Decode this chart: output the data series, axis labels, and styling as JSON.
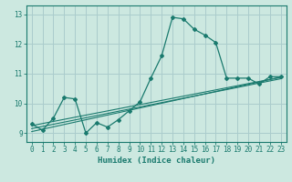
{
  "xlabel": "Humidex (Indice chaleur)",
  "bg_color": "#cce8e0",
  "grid_color": "#aacccc",
  "line_color": "#1a7a6e",
  "xlim": [
    -0.5,
    23.5
  ],
  "ylim": [
    8.7,
    13.3
  ],
  "yticks": [
    9,
    10,
    11,
    12,
    13
  ],
  "xticks": [
    0,
    1,
    2,
    3,
    4,
    5,
    6,
    7,
    8,
    9,
    10,
    11,
    12,
    13,
    14,
    15,
    16,
    17,
    18,
    19,
    20,
    21,
    22,
    23
  ],
  "series1_x": [
    0,
    1,
    2,
    3,
    4,
    5,
    6,
    7,
    8,
    9,
    10,
    11,
    12,
    13,
    14,
    15,
    16,
    17,
    18,
    19,
    20,
    21,
    22,
    23
  ],
  "series1_y": [
    9.3,
    9.1,
    9.5,
    10.2,
    10.15,
    9.0,
    9.35,
    9.2,
    9.45,
    9.75,
    10.05,
    10.85,
    11.6,
    12.9,
    12.85,
    12.5,
    12.3,
    12.05,
    10.85,
    10.85,
    10.85,
    10.65,
    10.9,
    10.9
  ],
  "series2_x": [
    0,
    23
  ],
  "series2_y": [
    9.25,
    10.88
  ],
  "series3_x": [
    0,
    23
  ],
  "series3_y": [
    9.15,
    10.83
  ],
  "series4_x": [
    0,
    23
  ],
  "series4_y": [
    9.05,
    10.88
  ]
}
